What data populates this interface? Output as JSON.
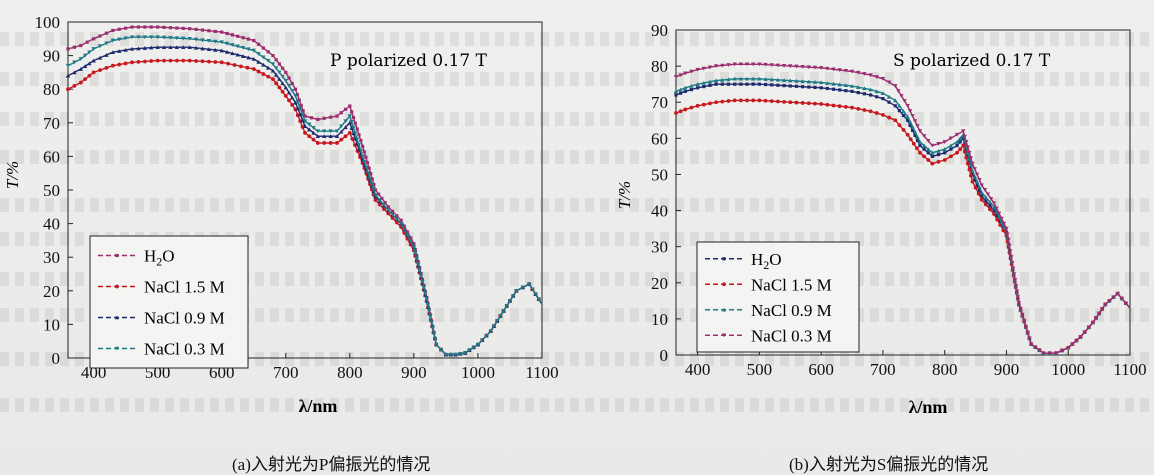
{
  "chart_data": [
    {
      "type": "line",
      "annotation": "P polarized 0.17 T",
      "xlabel": "λ/nm",
      "ylabel": "T/%",
      "caption": "(a)入射光为P偏振光的情况",
      "xlim": [
        360,
        1100
      ],
      "ylim": [
        0,
        100
      ],
      "xticks": [
        400,
        500,
        600,
        700,
        800,
        900,
        1000,
        1100
      ],
      "yticks": [
        0,
        10,
        20,
        30,
        40,
        50,
        60,
        70,
        80,
        90,
        100
      ],
      "legend_position": "bottom-left",
      "x": [
        360,
        380,
        400,
        430,
        460,
        500,
        550,
        600,
        650,
        680,
        700,
        715,
        730,
        750,
        780,
        800,
        820,
        840,
        860,
        880,
        900,
        920,
        935,
        950,
        965,
        980,
        1000,
        1020,
        1040,
        1060,
        1080,
        1100
      ],
      "series": [
        {
          "name": "H2O",
          "legend_label": "H₂O",
          "color": "#9b2d6f",
          "values": [
            92,
            93,
            95,
            97.5,
            98.5,
            98.5,
            98,
            97,
            94.5,
            90,
            85,
            80,
            72,
            71,
            72,
            75,
            63,
            50,
            45,
            41,
            34,
            18,
            4,
            1,
            1,
            1.5,
            4,
            8,
            14,
            20,
            22,
            16
          ]
        },
        {
          "name": "NaCl 1.5 M",
          "color": "#c8181f",
          "values": [
            80,
            82,
            85,
            87,
            88,
            88.5,
            88.5,
            88,
            86,
            83,
            78,
            74,
            67,
            64,
            64,
            67,
            58,
            47,
            43,
            39,
            32,
            17,
            4,
            1,
            1,
            1.5,
            4,
            8,
            14,
            20,
            22,
            16
          ]
        },
        {
          "name": "NaCl 0.9 M",
          "color": "#1d2a6e",
          "values": [
            84,
            86,
            88.5,
            91,
            92,
            92.5,
            92.5,
            91.5,
            89,
            85.5,
            80.5,
            76,
            69,
            66,
            66,
            70,
            59,
            48,
            44,
            40,
            33,
            17,
            4,
            1,
            1,
            1.5,
            4,
            8,
            14,
            20,
            22,
            16
          ]
        },
        {
          "name": "NaCl 0.3 M",
          "color": "#1e7a86",
          "values": [
            87,
            89,
            92,
            94.5,
            95.5,
            95.5,
            95,
            94,
            91.5,
            87.5,
            82.5,
            78,
            70.5,
            67.5,
            67.5,
            72,
            60,
            48.5,
            44,
            40,
            33,
            17.5,
            4,
            1,
            1,
            1.5,
            4,
            8,
            14,
            20,
            22,
            16
          ]
        }
      ]
    },
    {
      "type": "line",
      "annotation": "S polarized 0.17 T",
      "xlabel": "λ/nm",
      "ylabel": "T/%",
      "caption": "(b)入射光为S偏振光的情况",
      "xlim": [
        365,
        1100
      ],
      "ylim": [
        0,
        90
      ],
      "xticks": [
        400,
        500,
        600,
        700,
        800,
        900,
        1000,
        1100
      ],
      "yticks": [
        0,
        10,
        20,
        30,
        40,
        50,
        60,
        70,
        80,
        90
      ],
      "legend_position": "bottom-left",
      "x": [
        365,
        380,
        400,
        430,
        460,
        500,
        550,
        600,
        650,
        680,
        700,
        720,
        740,
        760,
        780,
        800,
        820,
        830,
        845,
        860,
        880,
        900,
        920,
        940,
        960,
        980,
        1000,
        1020,
        1040,
        1060,
        1080,
        1100
      ],
      "series": [
        {
          "name": "H2O",
          "legend_label": "H₂O",
          "color": "#1d2a6e",
          "values": [
            72,
            73,
            74,
            75,
            75,
            75,
            74.5,
            74,
            73,
            72,
            71,
            69,
            65,
            58,
            55,
            56,
            58,
            60,
            50,
            44,
            40,
            34,
            14,
            3,
            0.5,
            0.5,
            2,
            5,
            9,
            14,
            17,
            13
          ]
        },
        {
          "name": "NaCl 1.5 M",
          "color": "#c8181f",
          "values": [
            67,
            68,
            69,
            70,
            70.5,
            70.5,
            70,
            69.5,
            68.5,
            67.5,
            66.5,
            65,
            61,
            56,
            53,
            54,
            56,
            58,
            48,
            43,
            39,
            33,
            14,
            3,
            0.5,
            0.5,
            2,
            5,
            9,
            14,
            17,
            13
          ]
        },
        {
          "name": "NaCl 0.9 M",
          "color": "#1e7a86",
          "values": [
            73,
            74,
            75,
            76,
            76.5,
            76.5,
            76,
            75.5,
            74.5,
            73.5,
            72.5,
            70.5,
            66,
            59,
            56,
            57,
            59,
            61,
            51,
            45,
            41,
            34,
            14,
            3,
            0.5,
            0.5,
            2,
            5,
            9,
            14,
            17,
            13
          ]
        },
        {
          "name": "NaCl 0.3 M",
          "color": "#9b2d6f",
          "values": [
            77,
            78,
            79,
            80,
            80.5,
            80.5,
            80,
            79.5,
            78.5,
            77.5,
            76.5,
            74.5,
            69,
            62,
            58,
            59,
            61,
            62,
            53,
            47,
            42,
            35,
            14.5,
            3,
            0.5,
            0.5,
            2,
            5,
            9,
            14,
            17,
            13
          ]
        }
      ]
    }
  ]
}
